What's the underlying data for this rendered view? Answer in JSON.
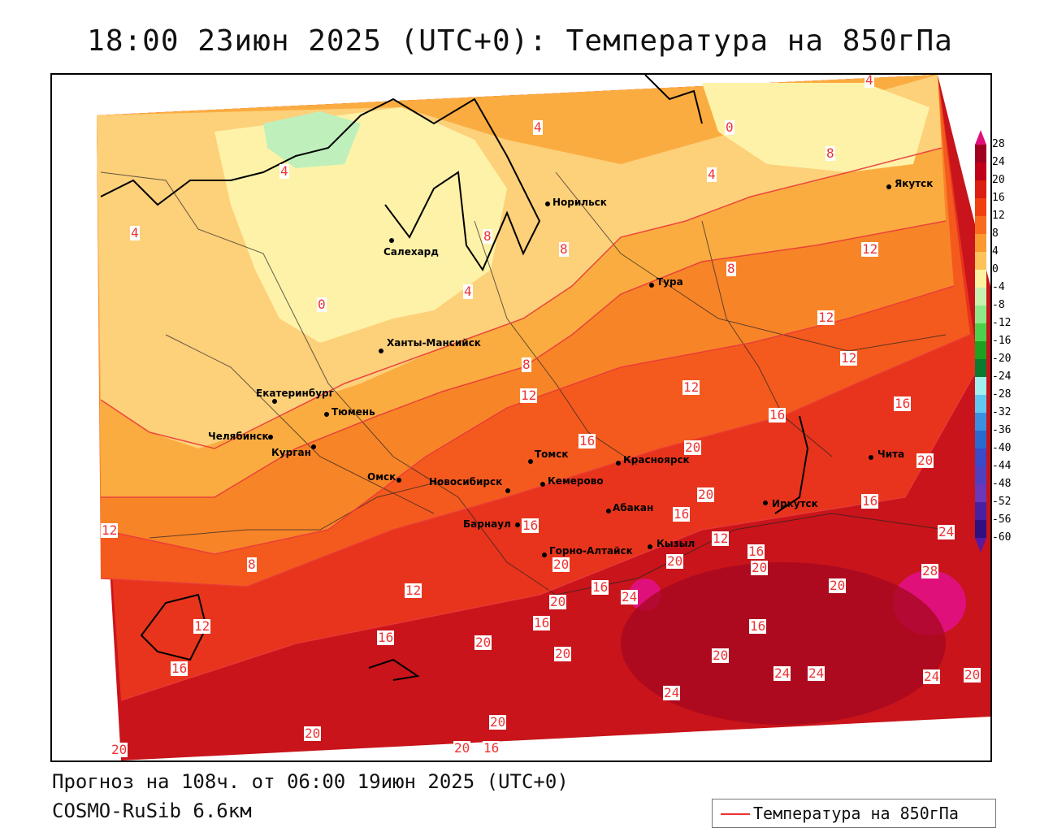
{
  "header": {
    "title": "18:00 23июн 2025 (UTC+0): Температура на 850гПа"
  },
  "footer": {
    "forecast": "Прогноз на 108ч. от 06:00 19июн 2025 (UTC+0)",
    "model": "COSMO-RuSib 6.6км"
  },
  "legend": {
    "label": "Температура на 850гПа",
    "line_color": "#e83a3a"
  },
  "colorbar": {
    "ticks": [
      "28",
      "24",
      "20",
      "16",
      "12",
      "8",
      "4",
      "0",
      "-4",
      "-8",
      "-12",
      "-16",
      "-20",
      "-24",
      "-28",
      "-32",
      "-36",
      "-40",
      "-44",
      "-48",
      "-52",
      "-56",
      "-60"
    ],
    "colors": [
      "#a00020",
      "#c00018",
      "#dc1e10",
      "#f04010",
      "#f86a1e",
      "#fa9a30",
      "#fdc25a",
      "#fef2a0",
      "#c8f0b0",
      "#8ee88a",
      "#4cd04c",
      "#20a020",
      "#0a7a30",
      "#a0f0f0",
      "#60c8f0",
      "#3a90e0",
      "#2a6ad0",
      "#3a4ac8",
      "#5040c0",
      "#6a38b8",
      "#4820a0",
      "#301080"
    ]
  },
  "cities": [
    {
      "name": "Якутск"
    },
    {
      "name": "Норильск"
    },
    {
      "name": "Салехард"
    },
    {
      "name": "Тура"
    },
    {
      "name": "Ханты-Мансийск"
    },
    {
      "name": "Екатеринбург"
    },
    {
      "name": "Тюмень"
    },
    {
      "name": "Челябинск"
    },
    {
      "name": "Курган"
    },
    {
      "name": "Омск"
    },
    {
      "name": "Новосибирск"
    },
    {
      "name": "Томск"
    },
    {
      "name": "Кемерово"
    },
    {
      "name": "Красноярск"
    },
    {
      "name": "Барнаул"
    },
    {
      "name": "Абакан"
    },
    {
      "name": "Горно-Алтайск"
    },
    {
      "name": "Кызыл"
    },
    {
      "name": "Иркутск"
    },
    {
      "name": "Чита"
    }
  ],
  "isolines": [
    "4",
    "0",
    "4",
    "4",
    "8",
    "8",
    "4",
    "8",
    "4",
    "0",
    "4",
    "8",
    "12",
    "8",
    "12",
    "12",
    "12",
    "12",
    "16",
    "20",
    "16",
    "16",
    "20",
    "16",
    "12",
    "16",
    "20",
    "20",
    "24",
    "28",
    "20",
    "16",
    "20",
    "24",
    "20",
    "20",
    "24",
    "24",
    "24",
    "20",
    "12",
    "16",
    "20",
    "16",
    "20",
    "20",
    "24",
    "20",
    "20",
    "16",
    "8",
    "12",
    "16",
    "20",
    "12",
    "16",
    "16",
    "20",
    "16"
  ]
}
